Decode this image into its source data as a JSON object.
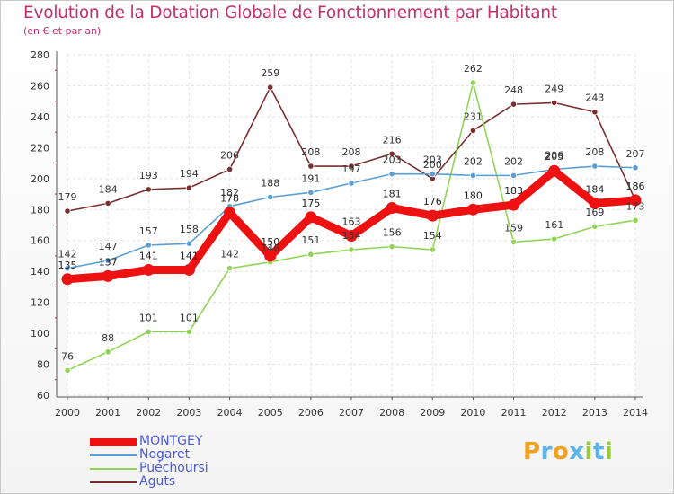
{
  "title": "Evolution de la Dotation Globale de Fonctionnement par Habitant",
  "subtitle": "(en € et par an)",
  "logo": {
    "text": "Proxiti",
    "letters": [
      {
        "ch": "P",
        "color": "#f2a01e"
      },
      {
        "ch": "r",
        "color": "#5bb3e8"
      },
      {
        "ch": "o",
        "color": "#f2a01e"
      },
      {
        "ch": "x",
        "color": "#5bb3e8"
      },
      {
        "ch": "i",
        "color": "#9ac93a"
      },
      {
        "ch": "t",
        "color": "#5bb3e8"
      },
      {
        "ch": "i",
        "color": "#9ac93a"
      }
    ]
  },
  "chart_data": {
    "type": "line",
    "title": "Evolution de la Dotation Globale de Fonctionnement par Habitant",
    "ylabel": "(en € et par an)",
    "xlabel": "",
    "x": [
      "2000",
      "2001",
      "2002",
      "2003",
      "2004",
      "2005",
      "2006",
      "2007",
      "2008",
      "2009",
      "2010",
      "2011",
      "2012",
      "2013",
      "2014"
    ],
    "ylim": [
      60,
      280
    ],
    "yticks": [
      60,
      80,
      100,
      120,
      140,
      160,
      180,
      200,
      220,
      240,
      260,
      280
    ],
    "grid": true,
    "legend_position": "bottom-left",
    "series": [
      {
        "name": "MONTGEY",
        "color": "#ee1111",
        "values": [
          135,
          137,
          141,
          141,
          178,
          150,
          175,
          163,
          181,
          176,
          180,
          183,
          205,
          184,
          186
        ]
      },
      {
        "name": "Nogaret",
        "color": "#5a9ed6",
        "values": [
          142,
          147,
          157,
          158,
          182,
          188,
          191,
          197,
          203,
          203,
          202,
          202,
          206,
          208,
          207
        ]
      },
      {
        "name": "Puéchoursi",
        "color": "#8fd455",
        "values": [
          76,
          88,
          101,
          101,
          142,
          146,
          151,
          154,
          156,
          154,
          262,
          159,
          161,
          169,
          173
        ]
      },
      {
        "name": "Aguts",
        "color": "#7a2e2e",
        "values": [
          179,
          184,
          193,
          194,
          206,
          259,
          208,
          208,
          216,
          200,
          231,
          248,
          249,
          243,
          186
        ]
      }
    ]
  }
}
